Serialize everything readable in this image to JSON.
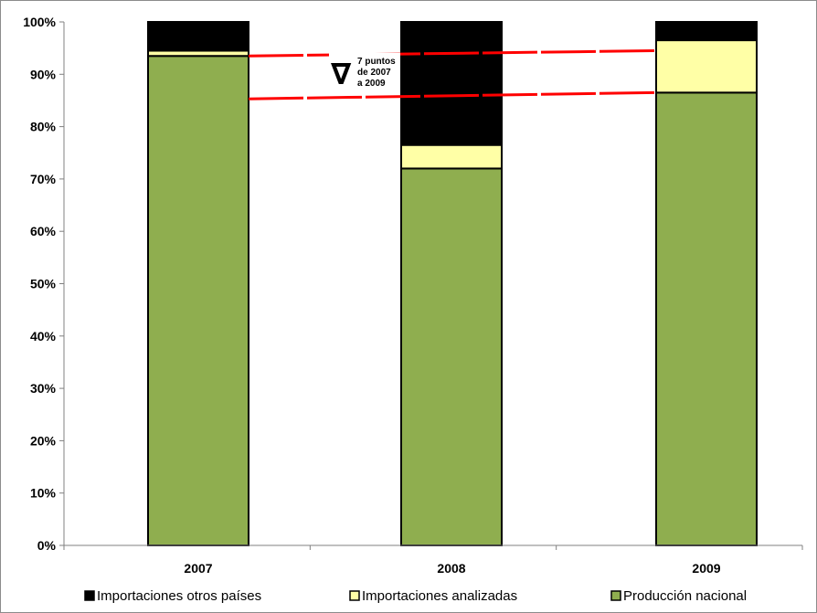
{
  "chart_data": {
    "type": "bar",
    "stacked": true,
    "percent": true,
    "categories": [
      "2007",
      "2008",
      "2009"
    ],
    "series": [
      {
        "name": "Producción nacional",
        "values": [
          93.5,
          72,
          86.5
        ],
        "color": "#8fae4f"
      },
      {
        "name": "Importaciones analizadas",
        "values": [
          1,
          4.5,
          10
        ],
        "color": "#ffffa6"
      },
      {
        "name": "Importaciones otros países",
        "values": [
          5.5,
          23.5,
          3.5
        ],
        "color": "#000000"
      }
    ],
    "legend_order": [
      "Importaciones otros países",
      "Importaciones analizadas",
      "Producción nacional"
    ],
    "y_ticks": [
      "0%",
      "10%",
      "20%",
      "30%",
      "40%",
      "50%",
      "60%",
      "70%",
      "80%",
      "90%",
      "100%"
    ],
    "ylim": [
      0,
      100
    ],
    "grid": false,
    "legend_position": "bottom",
    "annotation": {
      "lines": [
        "7 puntos",
        "de 2007",
        "a 2009"
      ],
      "symbol": "∇",
      "color": "#ff0000",
      "from_value": 93.5,
      "to_value": 86.5,
      "upper_to_value": 94.5,
      "lower_from_value": 85.3
    }
  }
}
